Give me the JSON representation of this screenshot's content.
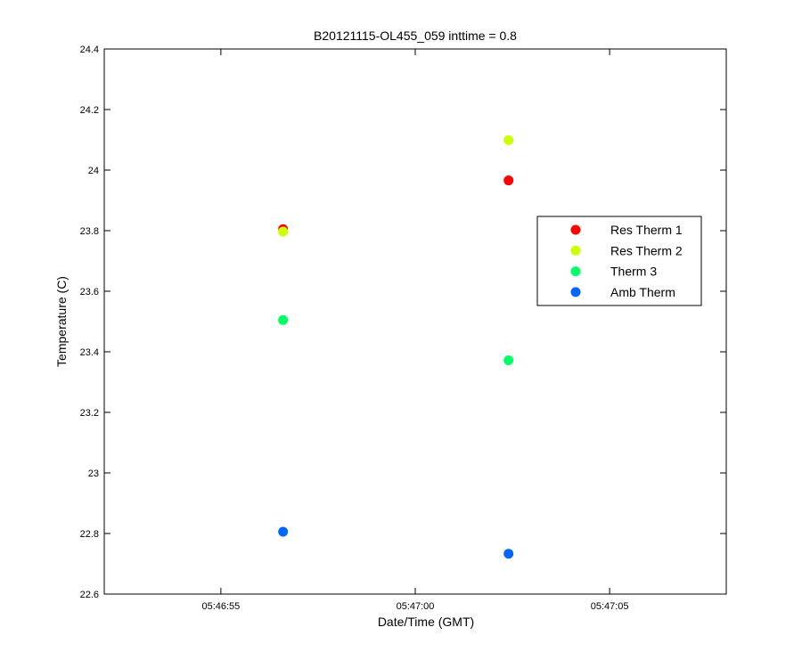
{
  "chart_data": {
    "type": "scatter",
    "title": "B20121115-OL455_059 inttime = 0.8",
    "xlabel": "Date/Time (GMT)",
    "ylabel": "Temperature (C)",
    "x_range": [
      "05:46:52",
      "05:47:08"
    ],
    "ylim": [
      22.6,
      24.4
    ],
    "x_ticks": [
      "05:46:55",
      "05:47:00",
      "05:47:05"
    ],
    "y_ticks": [
      "22.6",
      "22.8",
      "23",
      "23.2",
      "23.4",
      "23.6",
      "23.8",
      "24",
      "24.2",
      "24.4"
    ],
    "grid": false,
    "legend_position": "right",
    "series": [
      {
        "name": "Res Therm 1",
        "color": "#ff0000",
        "points": [
          {
            "x": "05:46:56.6",
            "y": 23.805
          },
          {
            "x": "05:47:02.4",
            "y": 23.966
          }
        ]
      },
      {
        "name": "Res Therm 2",
        "color": "#ccff00",
        "points": [
          {
            "x": "05:46:56.6",
            "y": 23.797
          },
          {
            "x": "05:47:02.4",
            "y": 24.099
          }
        ]
      },
      {
        "name": "Therm 3",
        "color": "#00ff66",
        "points": [
          {
            "x": "05:46:56.6",
            "y": 23.505
          },
          {
            "x": "05:47:02.4",
            "y": 23.372
          }
        ]
      },
      {
        "name": "Amb Therm",
        "color": "#0066ff",
        "points": [
          {
            "x": "05:46:56.6",
            "y": 22.806
          },
          {
            "x": "05:47:02.4",
            "y": 22.733
          }
        ]
      }
    ]
  }
}
